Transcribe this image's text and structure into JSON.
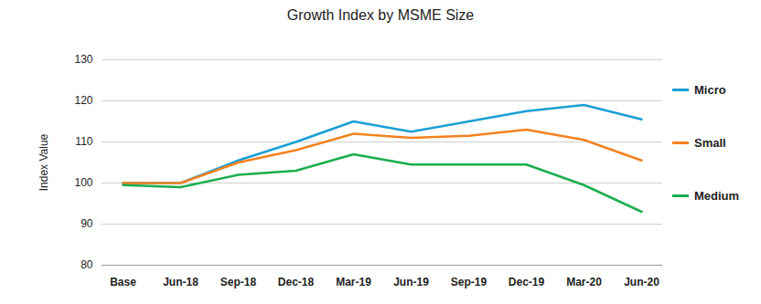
{
  "chart_data": {
    "type": "line",
    "title": "Growth Index by MSME Size",
    "y_label": "Index Value",
    "categories": [
      "Base",
      "Jun-18",
      "Sep-18",
      "Dec-18",
      "Mar-19",
      "Jun-19",
      "Sep-19",
      "Dec-19",
      "Mar-20",
      "Jun-20"
    ],
    "series": [
      {
        "name": "Micro",
        "color": "#1a9fd4",
        "values": [
          100,
          100,
          105.5,
          110,
          115,
          112.5,
          115,
          117.5,
          119,
          115.5
        ]
      },
      {
        "name": "Small",
        "color": "#f58220",
        "values": [
          100,
          100,
          105,
          108,
          112,
          111,
          111.5,
          113,
          110.5,
          105.5
        ]
      },
      {
        "name": "Medium",
        "color": "#1aae4e",
        "values": [
          99.5,
          99,
          102,
          103,
          107,
          104.5,
          104.5,
          104.5,
          99.5,
          93
        ]
      }
    ],
    "ylim": [
      80,
      130
    ],
    "yticks": [
      80,
      90,
      100,
      110,
      120,
      130
    ],
    "grid": true,
    "legend": "right"
  }
}
